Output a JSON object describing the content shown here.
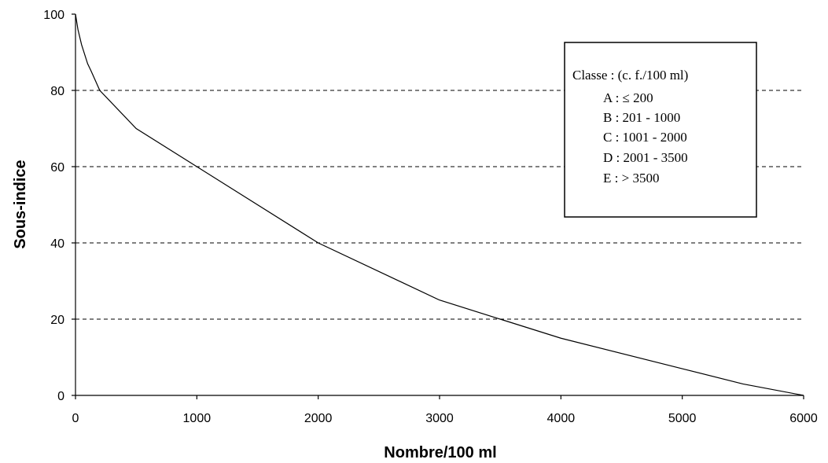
{
  "chart_data": {
    "type": "line",
    "xlabel": "Nombre/100 ml",
    "ylabel": "Sous-indice",
    "xlim": [
      0,
      6000
    ],
    "ylim": [
      0,
      100
    ],
    "x_ticks": [
      0,
      1000,
      2000,
      3000,
      4000,
      5000,
      6000
    ],
    "y_ticks": [
      0,
      20,
      40,
      60,
      80,
      100
    ],
    "grid": "horizontal dashed at 20, 40, 60, 80",
    "series": [
      {
        "x": [
          0,
          20,
          50,
          100,
          130,
          200,
          500,
          1000,
          2000,
          3000,
          3500,
          4000,
          5000,
          5500,
          6000
        ],
        "y": [
          100,
          96,
          92,
          87,
          85,
          80,
          70,
          60,
          40,
          25,
          20,
          15,
          7,
          3,
          0
        ],
        "color": "#000000"
      }
    ],
    "legend": {
      "title": "Classe : (c. f./100 ml)",
      "entries": [
        "A : ≤ 200",
        "B : 201 - 1000",
        "C : 1001 - 2000",
        "D : 2001 - 3500",
        "E : > 3500"
      ],
      "placement": "top-right"
    }
  }
}
